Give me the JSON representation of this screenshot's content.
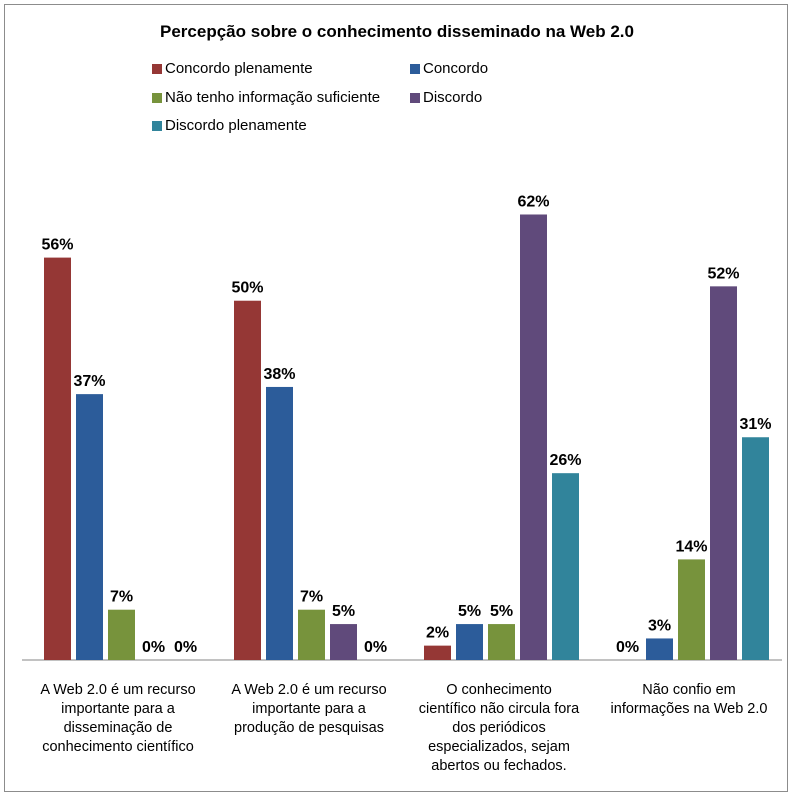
{
  "chart_data": {
    "type": "bar",
    "title": "Percepção sobre o conhecimento disseminado na Web 2.0",
    "xlabel": "",
    "ylabel": "",
    "ylim": [
      0,
      70
    ],
    "grid": false,
    "legend_position": "top",
    "categories": [
      "A Web 2.0 é um recurso\nimportante para a\ndisseminação de\nconhecimento científico",
      "A Web 2.0 é um recurso\nimportante para a\nprodução de pesquisas",
      "O conhecimento\ncientífico não circula fora\ndos periódicos\nespecializados, sejam\nabertos ou fechados.",
      "Não confio em\ninformações na Web 2.0"
    ],
    "series": [
      {
        "name": "Concordo plenamente",
        "color": "#953735",
        "values": [
          56,
          50,
          2,
          0
        ],
        "labels": [
          "56%",
          "50%",
          "2%",
          "0%"
        ]
      },
      {
        "name": "Concordo",
        "color": "#2c5c9a",
        "values": [
          37,
          38,
          5,
          3
        ],
        "labels": [
          "37%",
          "38%",
          "5%",
          "3%"
        ]
      },
      {
        "name": "Não tenho informação suficiente",
        "color": "#77933c",
        "values": [
          7,
          7,
          5,
          14
        ],
        "labels": [
          "7%",
          "7%",
          "5%",
          "14%"
        ]
      },
      {
        "name": "Discordo",
        "color": "#604a7b",
        "values": [
          0,
          5,
          62,
          52
        ],
        "labels": [
          "0%",
          "5%",
          "62%",
          "52%"
        ]
      },
      {
        "name": "Discordo plenamente",
        "color": "#31849b",
        "values": [
          0,
          0,
          26,
          31
        ],
        "labels": [
          "0%",
          "0%",
          "26%",
          "31%"
        ]
      }
    ]
  }
}
